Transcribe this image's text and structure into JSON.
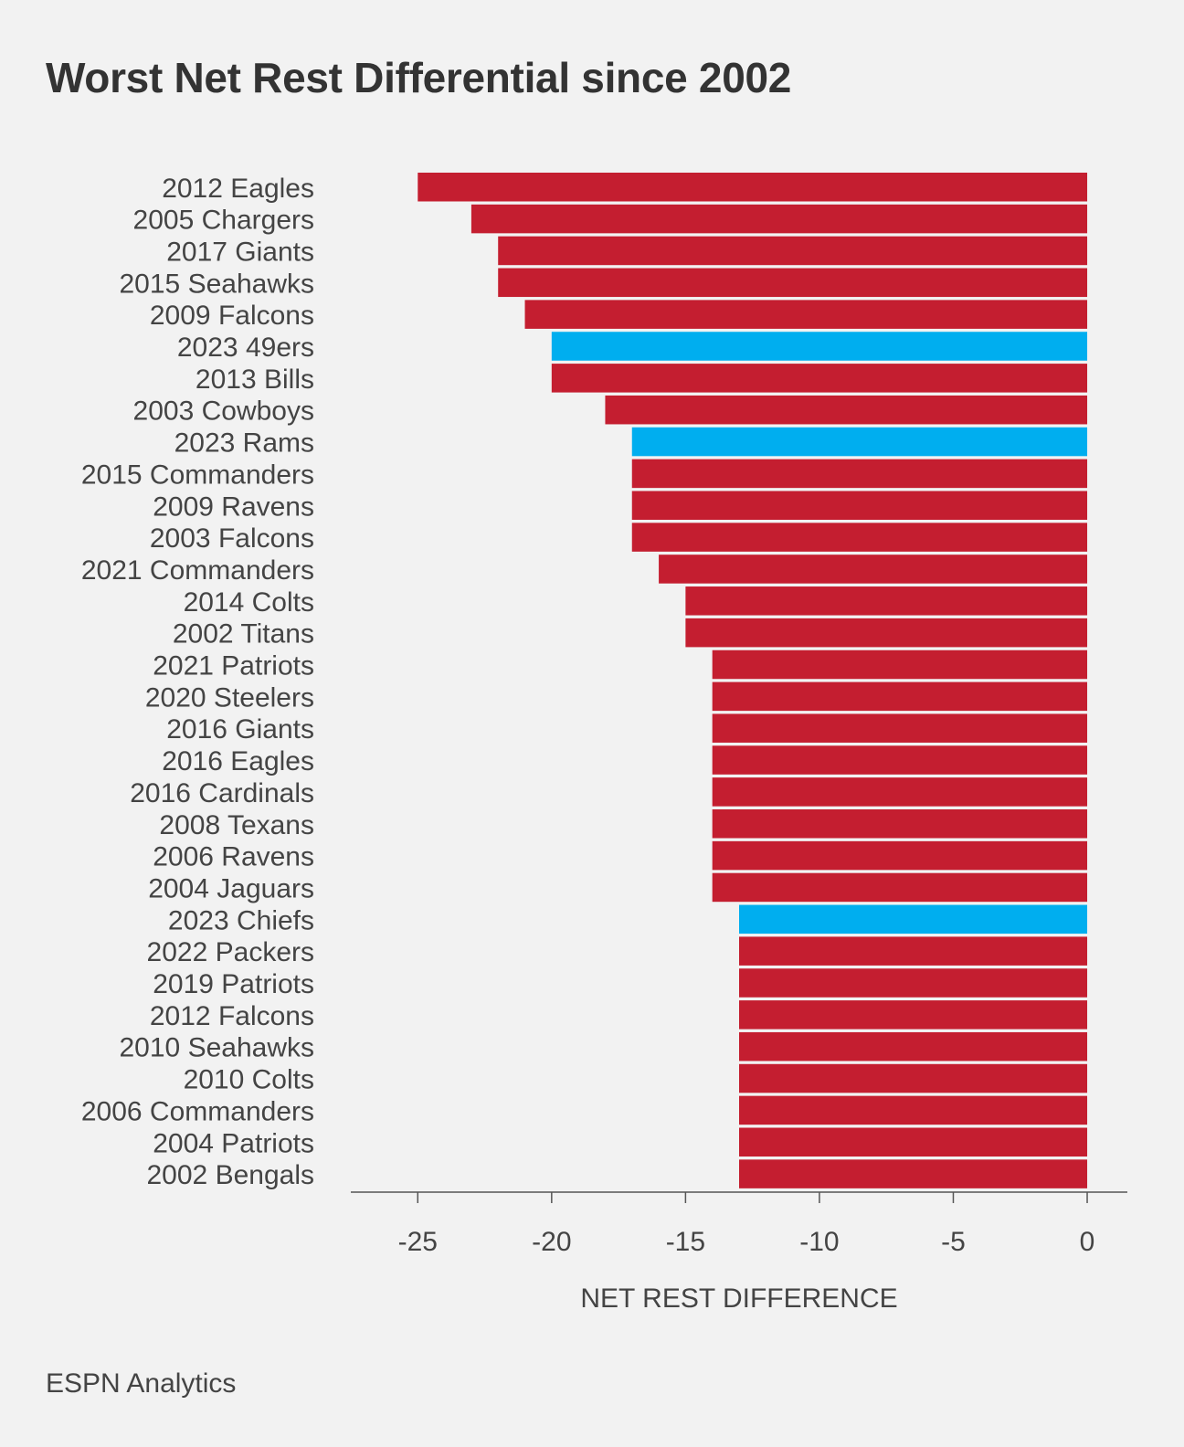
{
  "title": "Worst Net Rest Differential since 2002",
  "source": "ESPN Analytics",
  "colors": {
    "default_bar": "#c41e30",
    "highlight_bar": "#00aeef",
    "axis": "#555555",
    "text": "#444444"
  },
  "chart_data": {
    "type": "bar",
    "orientation": "horizontal",
    "title": "Worst Net Rest Differential since 2002",
    "xlabel": "NET REST DIFFERENCE",
    "ylabel": "",
    "xlim": [
      -27.5,
      1.5
    ],
    "xticks": [
      -25,
      -20,
      -15,
      -10,
      -5,
      0
    ],
    "xtick_labels": [
      "-25",
      "-20",
      "-15",
      "-10",
      "-5",
      "0"
    ],
    "grid": false,
    "categories": [
      "2012 Eagles",
      "2005 Chargers",
      "2017 Giants",
      "2015 Seahawks",
      "2009 Falcons",
      "2023 49ers",
      "2013 Bills",
      "2003 Cowboys",
      "2023 Rams",
      "2015 Commanders",
      "2009 Ravens",
      "2003 Falcons",
      "2021 Commanders",
      "2014 Colts",
      "2002 Titans",
      "2021 Patriots",
      "2020 Steelers",
      "2016 Giants",
      "2016 Eagles",
      "2016 Cardinals",
      "2008 Texans",
      "2006 Ravens",
      "2004 Jaguars",
      "2023 Chiefs",
      "2022 Packers",
      "2019 Patriots",
      "2012 Falcons",
      "2010 Seahawks",
      "2010 Colts",
      "2006 Commanders",
      "2004 Patriots",
      "2002 Bengals"
    ],
    "values": [
      -25,
      -23,
      -22,
      -22,
      -21,
      -20,
      -20,
      -18,
      -17,
      -17,
      -17,
      -17,
      -16,
      -15,
      -15,
      -14,
      -14,
      -14,
      -14,
      -14,
      -14,
      -14,
      -14,
      -13,
      -13,
      -13,
      -13,
      -13,
      -13,
      -13,
      -13,
      -13
    ],
    "highlighted": [
      false,
      false,
      false,
      false,
      false,
      true,
      false,
      false,
      true,
      false,
      false,
      false,
      false,
      false,
      false,
      false,
      false,
      false,
      false,
      false,
      false,
      false,
      false,
      true,
      false,
      false,
      false,
      false,
      false,
      false,
      false,
      false
    ]
  }
}
